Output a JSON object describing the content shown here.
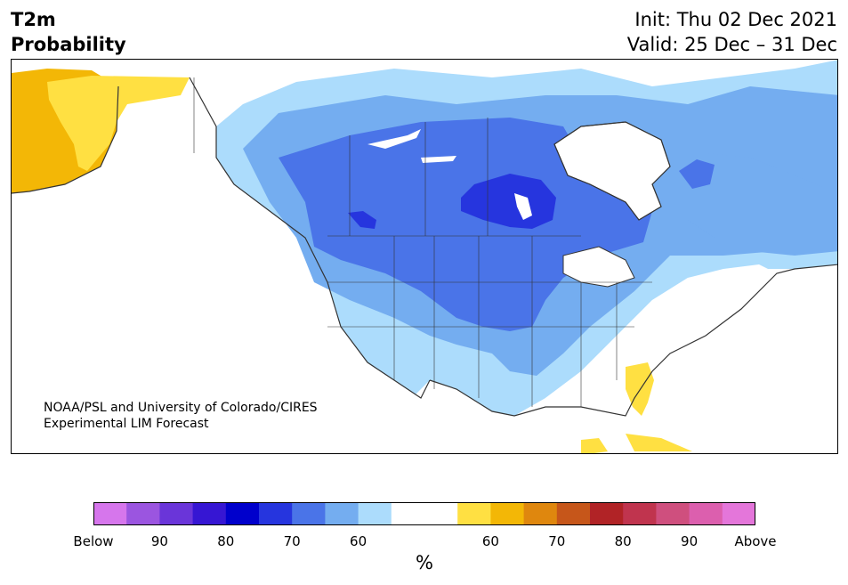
{
  "header": {
    "title_line1": "T2m",
    "title_line2": "Probability",
    "init": "Init: Thu 02 Dec 2021",
    "valid": "Valid: 25 Dec – 31 Dec"
  },
  "credit": {
    "line1": "NOAA/PSL and University of Colorado/CIRES",
    "line2": "Experimental LIM Forecast"
  },
  "colorbar": {
    "colors": [
      "#d676ec",
      "#9b55e0",
      "#6a35d9",
      "#3616d3",
      "#0000cc",
      "#2635de",
      "#4a74e8",
      "#74adf0",
      "#acdcfc",
      "#ffffff",
      "#ffffff",
      "#ffe042",
      "#f3b706",
      "#df870e",
      "#c6561a",
      "#b12326",
      "#c0344e",
      "#cf4f7e",
      "#dc5fae",
      "#e476da"
    ],
    "tick_labels": [
      "Below",
      "90",
      "80",
      "70",
      "60",
      "",
      "60",
      "70",
      "80",
      "90",
      "Above"
    ],
    "unit": "%"
  },
  "map": {
    "colors": {
      "land_white": "#ffffff",
      "prob_60_below": "#acdcfc",
      "prob_70_below": "#74adf0",
      "prob_80_below": "#4a74e8",
      "prob_90_below": "#2635de",
      "prob_60_above": "#ffe042",
      "prob_70_above": "#f3b706",
      "coast": "#333333"
    }
  }
}
